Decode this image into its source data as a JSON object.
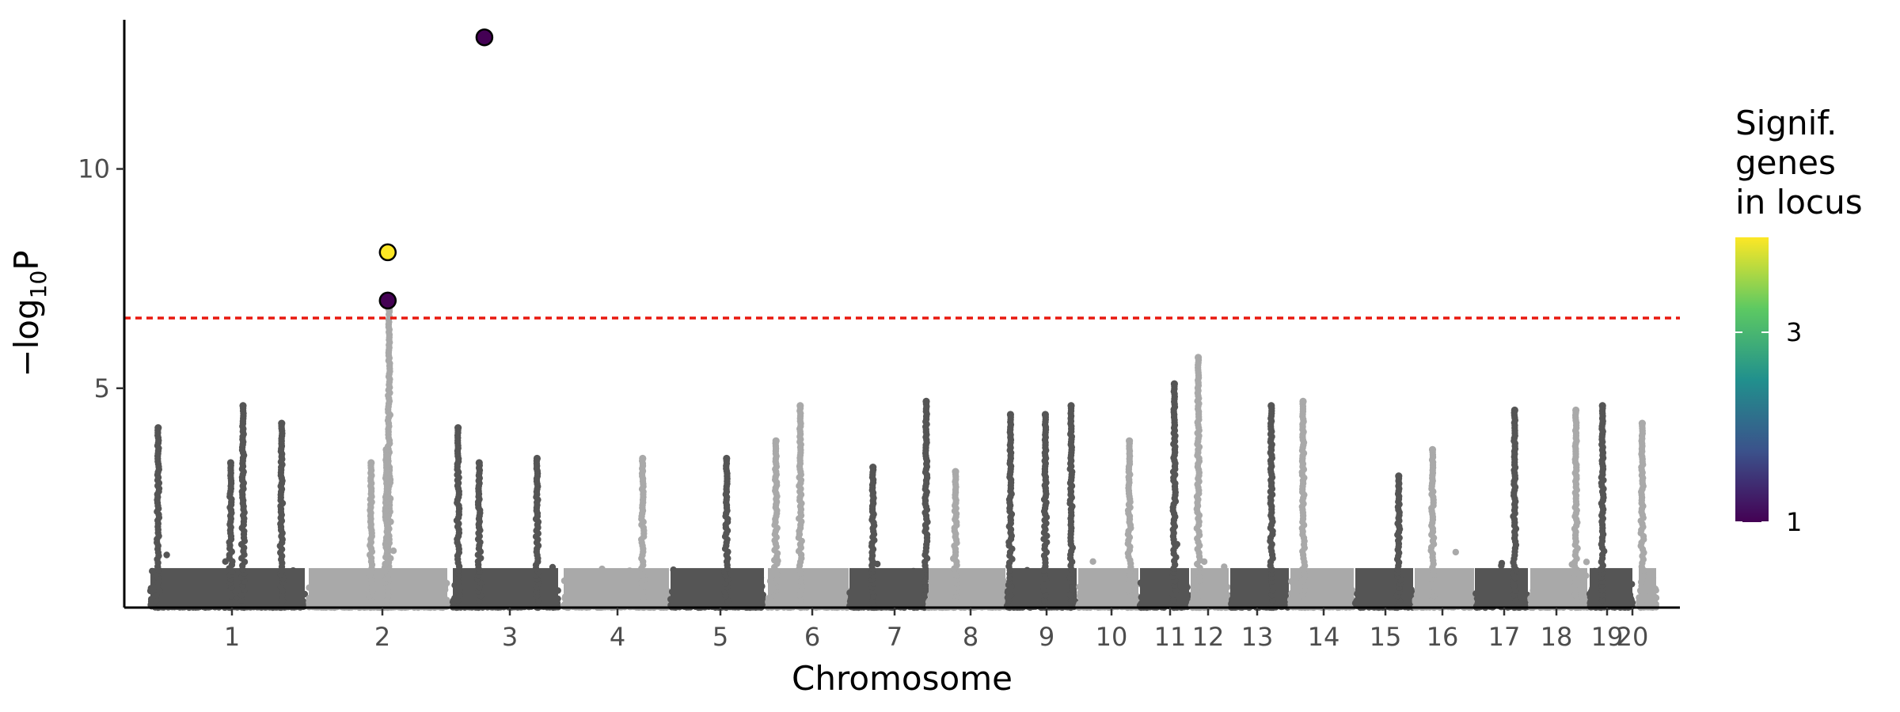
{
  "chart_data": {
    "type": "scatter",
    "subtype": "manhattan",
    "title": "",
    "xlabel": "Chromosome",
    "ylabel_parts": [
      "−log",
      "10",
      "P"
    ],
    "ylim": [
      0,
      13.4
    ],
    "yticks": [
      5,
      10
    ],
    "grid": false,
    "threshold": {
      "value": 6.6,
      "color": "#e8190f",
      "style": "dashed"
    },
    "point_colors": [
      "#555555",
      "#a9a9a9"
    ],
    "chromosomes": [
      {
        "label": "1",
        "tick": 1
      },
      {
        "label": "2",
        "tick": 1
      },
      {
        "label": "3",
        "tick": 1
      },
      {
        "label": "4",
        "tick": 1
      },
      {
        "label": "5",
        "tick": 1
      },
      {
        "label": "6",
        "tick": 1
      },
      {
        "label": "7",
        "tick": 1
      },
      {
        "label": "8",
        "tick": 1
      },
      {
        "label": "9",
        "tick": 1
      },
      {
        "label": "10",
        "tick": 1
      },
      {
        "label": "11",
        "tick": 1
      },
      {
        "label": "12",
        "tick": 1
      },
      {
        "label": "13",
        "tick": 1
      },
      {
        "label": "14",
        "tick": 1
      },
      {
        "label": "15",
        "tick": 1
      },
      {
        "label": "16",
        "tick": 1
      },
      {
        "label": "17",
        "tick": 1
      },
      {
        "label": "18",
        "tick": 1
      },
      {
        "label": "19",
        "tick": 1
      },
      {
        "label": "20",
        "tick": 1
      }
    ],
    "peaks": [
      {
        "chr": 1,
        "pos": 0.05,
        "y": 4.1
      },
      {
        "chr": 1,
        "pos": 0.52,
        "y": 3.3
      },
      {
        "chr": 1,
        "pos": 0.85,
        "y": 4.2
      },
      {
        "chr": 1,
        "pos": 0.6,
        "y": 4.6
      },
      {
        "chr": 2,
        "pos": 0.45,
        "y": 3.3
      },
      {
        "chr": 2,
        "pos": 0.58,
        "y": 6.8
      },
      {
        "chr": 2,
        "pos": 0.56,
        "y": 3.6
      },
      {
        "chr": 3,
        "pos": 0.05,
        "y": 4.1
      },
      {
        "chr": 3,
        "pos": 0.25,
        "y": 3.3
      },
      {
        "chr": 3,
        "pos": 0.8,
        "y": 3.4
      },
      {
        "chr": 4,
        "pos": 0.75,
        "y": 3.4
      },
      {
        "chr": 5,
        "pos": 0.6,
        "y": 3.4
      },
      {
        "chr": 6,
        "pos": 0.4,
        "y": 4.6
      },
      {
        "chr": 6,
        "pos": 0.1,
        "y": 3.8
      },
      {
        "chr": 7,
        "pos": 0.3,
        "y": 3.2
      },
      {
        "chr": 7,
        "pos": 0.98,
        "y": 4.7
      },
      {
        "chr": 8,
        "pos": 0.35,
        "y": 3.1
      },
      {
        "chr": 9,
        "pos": 0.05,
        "y": 4.4
      },
      {
        "chr": 9,
        "pos": 0.55,
        "y": 4.4
      },
      {
        "chr": 9,
        "pos": 0.92,
        "y": 4.6
      },
      {
        "chr": 10,
        "pos": 0.85,
        "y": 3.8
      },
      {
        "chr": 11,
        "pos": 0.7,
        "y": 5.1
      },
      {
        "chr": 12,
        "pos": 0.2,
        "y": 5.7
      },
      {
        "chr": 13,
        "pos": 0.7,
        "y": 4.6
      },
      {
        "chr": 14,
        "pos": 0.2,
        "y": 4.7
      },
      {
        "chr": 15,
        "pos": 0.75,
        "y": 3.0
      },
      {
        "chr": 16,
        "pos": 0.3,
        "y": 3.6
      },
      {
        "chr": 17,
        "pos": 0.75,
        "y": 4.5
      },
      {
        "chr": 18,
        "pos": 0.8,
        "y": 4.5
      },
      {
        "chr": 19,
        "pos": 0.3,
        "y": 4.6
      },
      {
        "chr": 20,
        "pos": 0.2,
        "y": 4.2
      }
    ],
    "highlighted": [
      {
        "chr": 2,
        "pos": 0.57,
        "y": 8.1,
        "genes": 4
      },
      {
        "chr": 2,
        "pos": 0.57,
        "y": 7.0,
        "genes": 1
      },
      {
        "chr": 3,
        "pos": 0.3,
        "y": 13.0,
        "genes": 1
      }
    ],
    "legend": {
      "title_lines": [
        "Signif.",
        "genes",
        "in locus"
      ],
      "ticks": [
        {
          "value": 1,
          "label": "1"
        },
        {
          "value": 3,
          "label": "3"
        }
      ],
      "range": [
        1,
        4
      ],
      "colors": [
        "#440154",
        "#3b528b",
        "#21908d",
        "#5dc962",
        "#fde725"
      ],
      "placement": "right"
    }
  }
}
